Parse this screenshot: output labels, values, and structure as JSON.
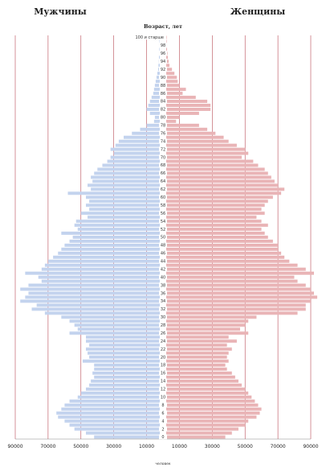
{
  "chart_data": {
    "type": "bar",
    "subtype": "population-pyramid",
    "left_heading": "Мужчины",
    "right_heading": "Женщины",
    "age_axis_title": "Возраст, лет",
    "x_unit_label": "человек",
    "x_ticks_left": [
      "90000",
      "70000",
      "50000",
      "30000",
      "10000"
    ],
    "x_ticks_right": [
      "10000",
      "30000",
      "50000",
      "70000",
      "90000"
    ],
    "xlim": [
      -90000,
      90000
    ],
    "age_tick_labels": [
      "100 и старше",
      "98",
      "96",
      "94",
      "92",
      "90",
      "88",
      "86",
      "84",
      "82",
      "80",
      "78",
      "76",
      "74",
      "72",
      "70",
      "68",
      "66",
      "64",
      "62",
      "60",
      "58",
      "56",
      "54",
      "52",
      "50",
      "48",
      "46",
      "44",
      "42",
      "40",
      "38",
      "36",
      "34",
      "32",
      "30",
      "28",
      "26",
      "24",
      "22",
      "20",
      "18",
      "16",
      "14",
      "12",
      "10",
      "8",
      "6",
      "4",
      "2",
      "0"
    ],
    "colors": {
      "male": "#c3d3ee",
      "female": "#e9b4b6",
      "gridline": "#b84a55"
    },
    "grid": true,
    "ages": [
      100,
      99,
      98,
      97,
      96,
      95,
      94,
      93,
      92,
      91,
      90,
      89,
      88,
      87,
      86,
      85,
      84,
      83,
      82,
      81,
      80,
      79,
      78,
      77,
      76,
      75,
      74,
      73,
      72,
      71,
      70,
      69,
      68,
      67,
      66,
      65,
      64,
      63,
      62,
      61,
      60,
      59,
      58,
      57,
      56,
      55,
      54,
      53,
      52,
      51,
      50,
      49,
      48,
      47,
      46,
      45,
      44,
      43,
      42,
      41,
      40,
      39,
      38,
      37,
      36,
      35,
      34,
      33,
      32,
      31,
      30,
      29,
      28,
      27,
      26,
      25,
      24,
      23,
      22,
      21,
      20,
      19,
      18,
      17,
      16,
      15,
      14,
      13,
      12,
      11,
      10,
      9,
      8,
      7,
      6,
      5,
      4,
      3,
      2,
      1,
      0
    ],
    "series": [
      {
        "name": "Мужчины",
        "values": [
          300,
          200,
          250,
          300,
          400,
          500,
          600,
          800,
          1000,
          1500,
          2000,
          2500,
          3000,
          3500,
          4000,
          5000,
          6000,
          7000,
          8000,
          6000,
          3000,
          3500,
          8000,
          12000,
          17000,
          22000,
          25000,
          27000,
          30000,
          28000,
          30000,
          32000,
          35000,
          38000,
          40000,
          42000,
          41000,
          44000,
          42000,
          56000,
          45000,
          43000,
          45000,
          43000,
          48000,
          44000,
          51000,
          52000,
          50000,
          60000,
          53000,
          55000,
          58000,
          60000,
          62000,
          65000,
          68000,
          70000,
          72000,
          82000,
          74000,
          72000,
          80000,
          85000,
          80000,
          82000,
          85000,
          75000,
          78000,
          70000,
          60000,
          55000,
          52000,
          50000,
          55000,
          45000,
          45000,
          43000,
          45000,
          44000,
          43000,
          47000,
          40000,
          40000,
          41000,
          40000,
          42000,
          43000,
          45000,
          48000,
          50000,
          55000,
          58000,
          60000,
          63000,
          62000,
          58000,
          55000,
          52000,
          45000,
          40000
        ]
      },
      {
        "name": "Женщины",
        "values": [
          300,
          300,
          400,
          500,
          800,
          1000,
          1500,
          2000,
          3500,
          5000,
          6500,
          7000,
          8000,
          12000,
          10000,
          18000,
          25000,
          27000,
          27000,
          20000,
          8000,
          6000,
          20000,
          25000,
          30000,
          35000,
          38000,
          43000,
          48000,
          50000,
          46000,
          53000,
          56000,
          60000,
          62000,
          64000,
          66000,
          68000,
          72000,
          70000,
          65000,
          62000,
          60000,
          58000,
          60000,
          55000,
          58000,
          62000,
          58000,
          60000,
          62000,
          65000,
          68000,
          68000,
          70000,
          72000,
          75000,
          80000,
          85000,
          90000,
          78000,
          80000,
          85000,
          88000,
          90000,
          92000,
          88000,
          85000,
          85000,
          80000,
          55000,
          50000,
          48000,
          45000,
          50000,
          38000,
          43000,
          37000,
          40000,
          38000,
          37000,
          38000,
          36000,
          37000,
          40000,
          42000,
          44000,
          46000,
          48000,
          50000,
          52000,
          54000,
          56000,
          58000,
          57000,
          55000,
          50000,
          48000,
          44000,
          40000,
          36000
        ]
      }
    ]
  }
}
